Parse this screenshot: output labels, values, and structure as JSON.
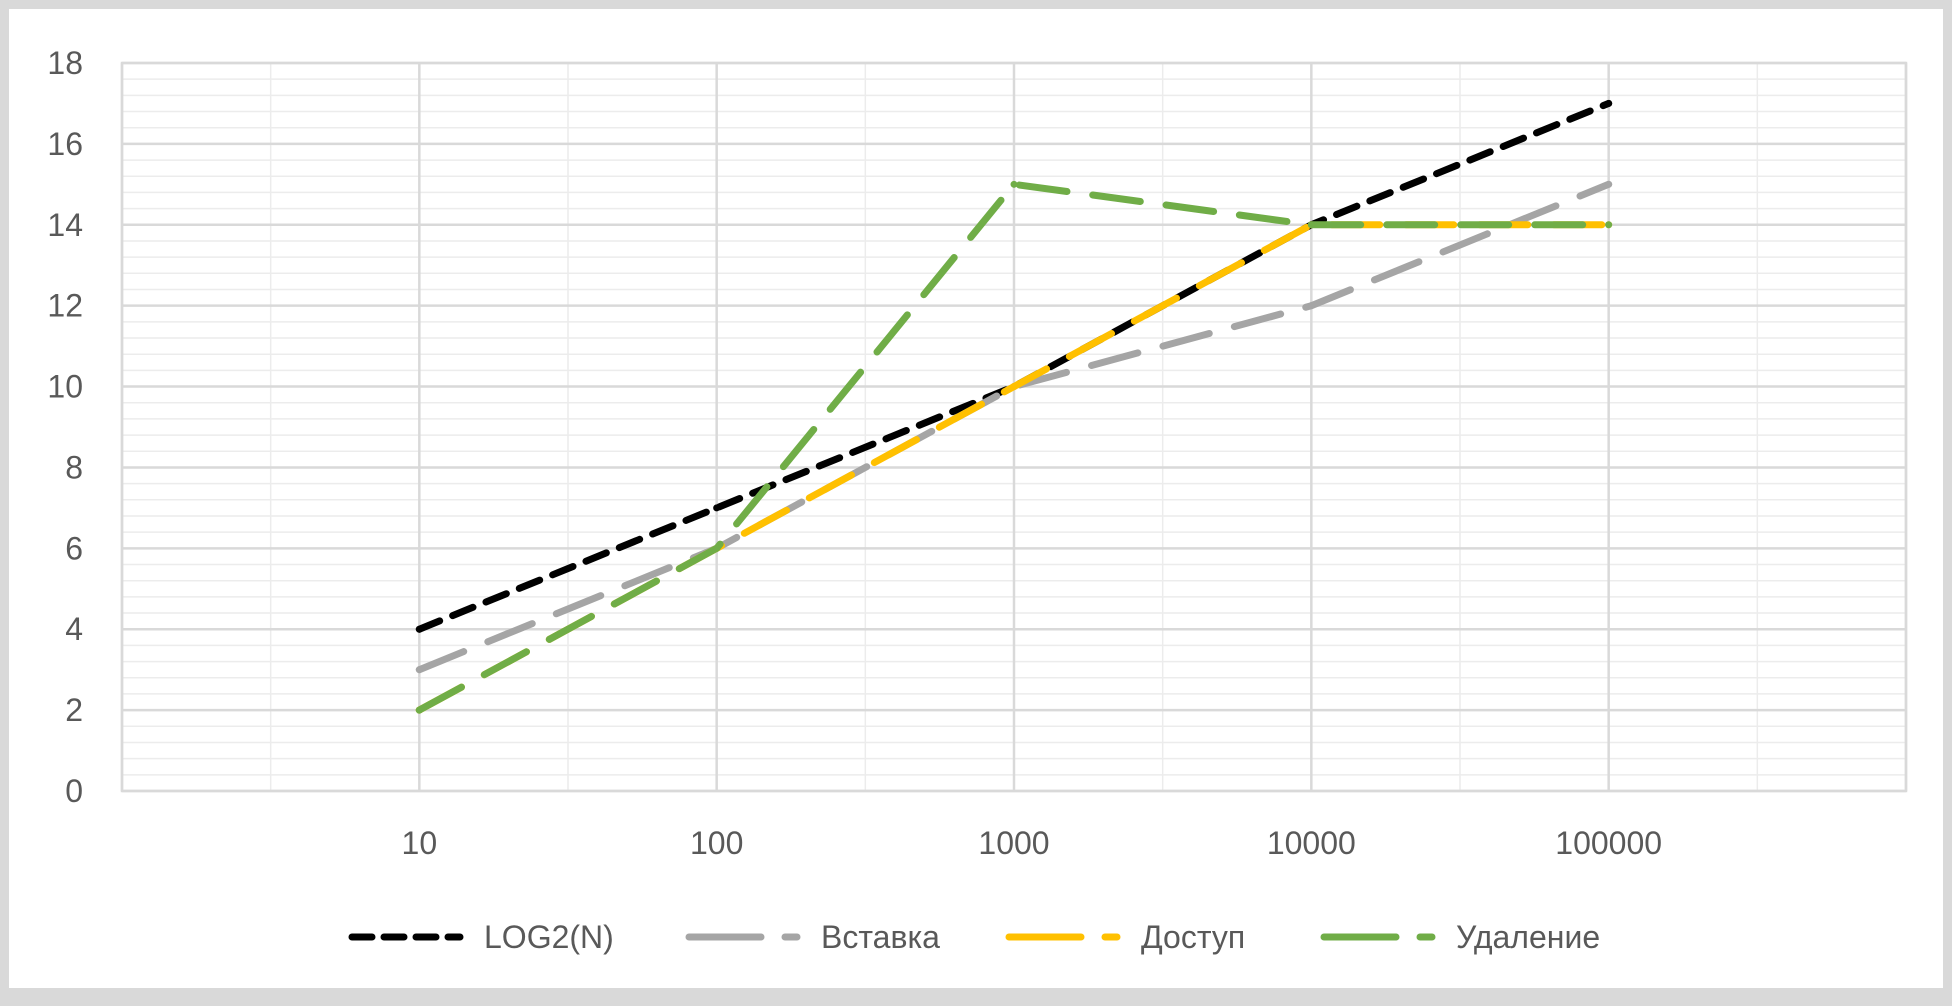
{
  "chart_data": {
    "type": "line",
    "title": "",
    "xlabel": "",
    "ylabel": "",
    "x_scale": "log",
    "x": [
      10,
      100,
      1000,
      10000,
      100000
    ],
    "xlim": [
      1,
      1000000
    ],
    "ylim": [
      0,
      18
    ],
    "y_ticks": [
      "0",
      "2",
      "4",
      "6",
      "8",
      "10",
      "12",
      "14",
      "16",
      "18"
    ],
    "x_ticks": [
      "10",
      "100",
      "1000",
      "10000",
      "100000"
    ],
    "grid": true,
    "legend_position": "bottom",
    "series": [
      {
        "name": "LOG2(N)",
        "color": "#000000",
        "dash": "short",
        "values": [
          4,
          7,
          10,
          14,
          17
        ]
      },
      {
        "name": "Вставка",
        "color": "#a5a5a5",
        "dash": "long",
        "values": [
          3,
          6,
          10,
          12,
          15
        ]
      },
      {
        "name": "Доступ",
        "color": "#ffc000",
        "dash": "long",
        "values": [
          2,
          6,
          10,
          14,
          14
        ]
      },
      {
        "name": "Удаление",
        "color": "#70ad47",
        "dash": "long",
        "values": [
          2,
          6,
          15,
          14,
          14
        ]
      }
    ]
  }
}
